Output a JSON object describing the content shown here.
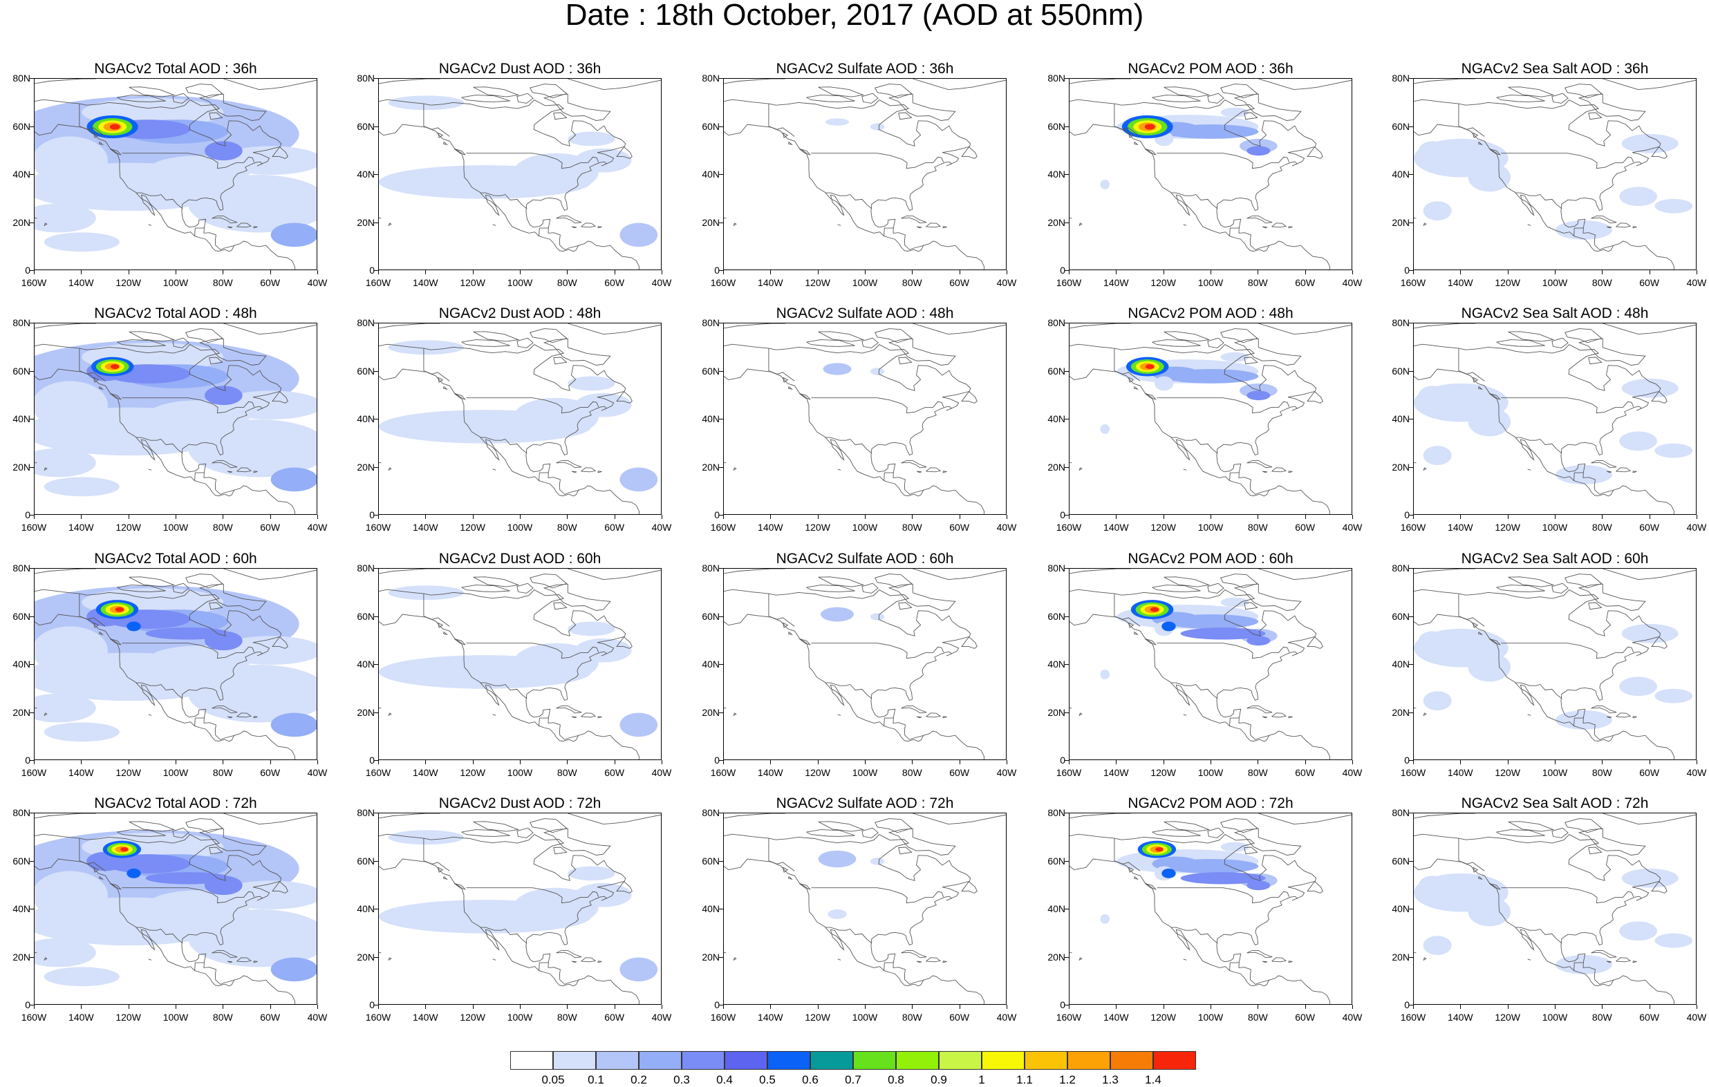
{
  "title": "Date : 18th October, 2017 (AOD at 550nm)",
  "rows": [
    {
      "hour": "36h",
      "panels": [
        {
          "title": "NGACv2 Total AOD : 36h",
          "species": "total"
        },
        {
          "title": "NGACv2 Dust AOD : 36h",
          "species": "dust"
        },
        {
          "title": "NGACv2 Sulfate AOD : 36h",
          "species": "sulfate"
        },
        {
          "title": "NGACv2 POM AOD : 36h",
          "species": "pom"
        },
        {
          "title": "NGACv2 Sea Salt AOD : 36h",
          "species": "seasalt"
        }
      ]
    },
    {
      "hour": "48h",
      "panels": [
        {
          "title": "NGACv2 Total AOD : 48h",
          "species": "total"
        },
        {
          "title": "NGACv2 Dust AOD : 48h",
          "species": "dust"
        },
        {
          "title": "NGACv2 Sulfate AOD : 48h",
          "species": "sulfate"
        },
        {
          "title": "NGACv2 POM AOD : 48h",
          "species": "pom"
        },
        {
          "title": "NGACv2 Sea Salt AOD : 48h",
          "species": "seasalt"
        }
      ]
    },
    {
      "hour": "60h",
      "panels": [
        {
          "title": "NGACv2 Total AOD : 60h",
          "species": "total"
        },
        {
          "title": "NGACv2 Dust AOD : 60h",
          "species": "dust"
        },
        {
          "title": "NGACv2 Sulfate AOD : 60h",
          "species": "sulfate"
        },
        {
          "title": "NGACv2 POM AOD : 60h",
          "species": "pom"
        },
        {
          "title": "NGACv2 Sea Salt AOD : 60h",
          "species": "seasalt"
        }
      ]
    },
    {
      "hour": "72h",
      "panels": [
        {
          "title": "NGACv2 Total AOD : 72h",
          "species": "total"
        },
        {
          "title": "NGACv2 Dust AOD : 72h",
          "species": "dust"
        },
        {
          "title": "NGACv2 Sulfate AOD : 72h",
          "species": "sulfate"
        },
        {
          "title": "NGACv2 POM AOD : 72h",
          "species": "pom"
        },
        {
          "title": "NGACv2 Sea Salt  AOD : 72h",
          "species": "seasalt"
        }
      ]
    }
  ],
  "axes": {
    "lat_labels": [
      "80N",
      "60N",
      "40N",
      "20N",
      "0"
    ],
    "lon_labels": [
      "160W",
      "140W",
      "120W",
      "100W",
      "80W",
      "60W",
      "40W"
    ],
    "lat_range": [
      0,
      80
    ],
    "lon_range": [
      -160,
      -40
    ]
  },
  "legend": {
    "labels": [
      "0.05",
      "0.1",
      "0.2",
      "0.3",
      "0.4",
      "0.5",
      "0.6",
      "0.7",
      "0.8",
      "0.9",
      "1",
      "1.1",
      "1.2",
      "1.3",
      "1.4"
    ],
    "colors": [
      "#ffffff",
      "#d5e0fa",
      "#b4c5f8",
      "#94aef7",
      "#7a8cf5",
      "#5c64f0",
      "#0b62f7",
      "#079a9a",
      "#66e11c",
      "#93f109",
      "#c9f547",
      "#f8f806",
      "#fbc306",
      "#fca106",
      "#f77c06",
      "#f7260a"
    ]
  }
}
